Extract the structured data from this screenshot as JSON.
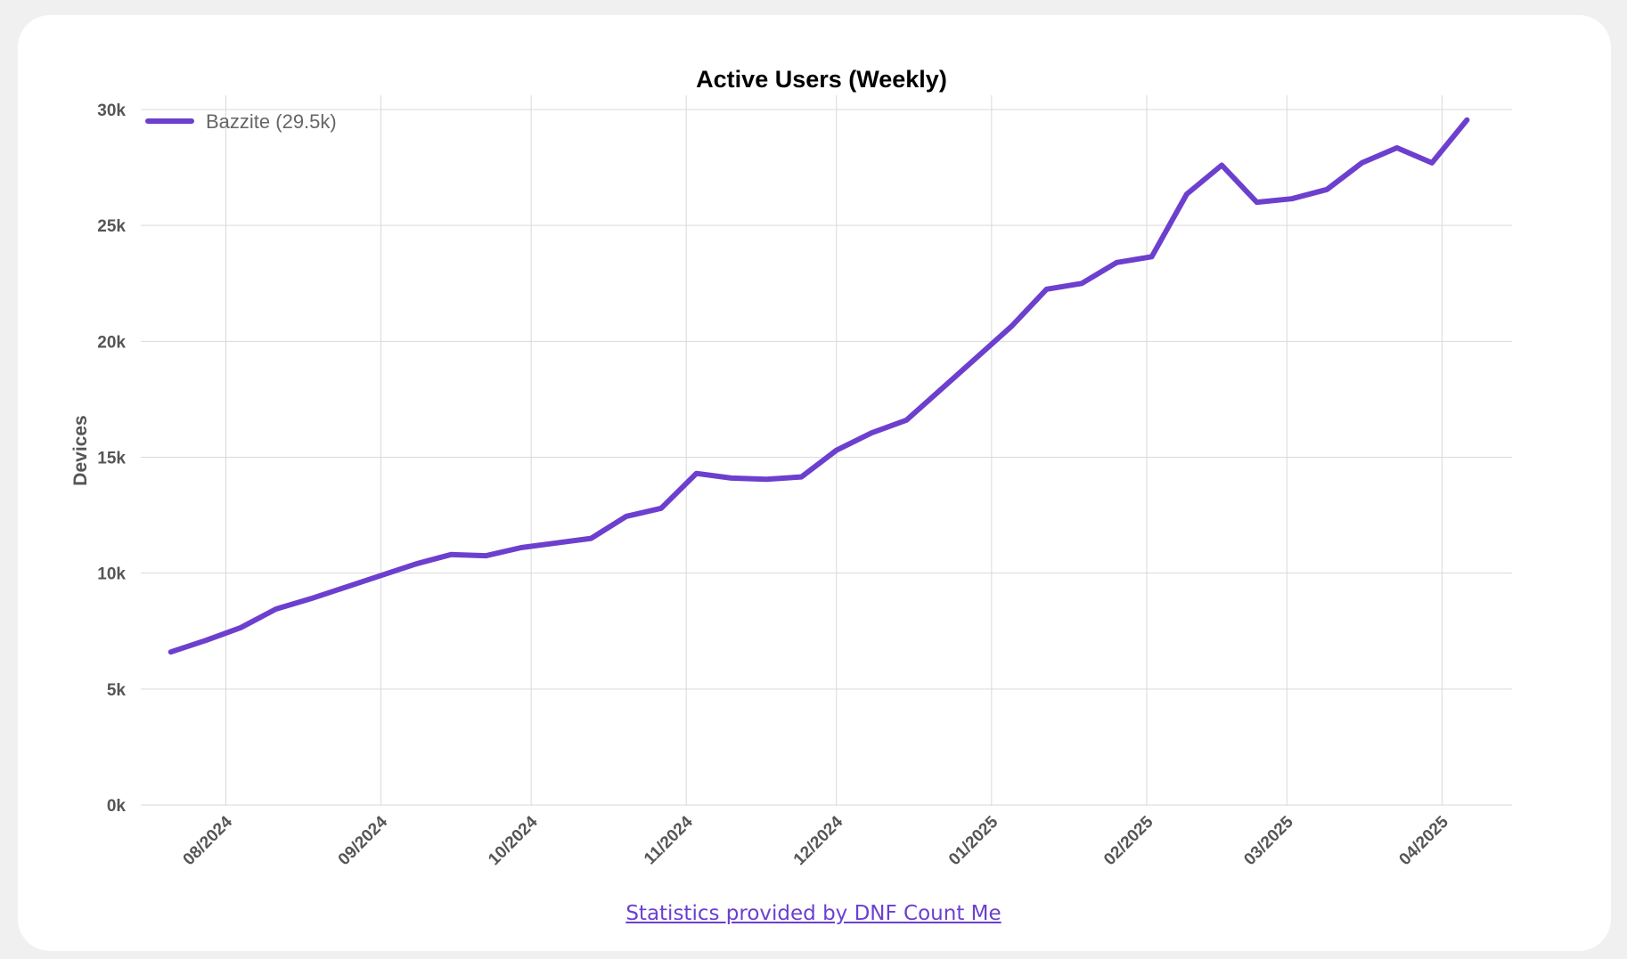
{
  "chart_data": {
    "type": "line",
    "title": "Active Users (Weekly)",
    "xlabel": "",
    "ylabel": "Devices",
    "ylim": [
      0,
      30000
    ],
    "y_ticks": [
      0,
      5000,
      10000,
      15000,
      20000,
      25000,
      30000
    ],
    "y_tick_labels": [
      "0k",
      "5k",
      "10k",
      "15k",
      "20k",
      "25k",
      "30k"
    ],
    "x_ticks": [
      "2024-08-01",
      "2024-09-01",
      "2024-10-01",
      "2024-11-01",
      "2024-12-01",
      "2025-01-01",
      "2025-02-01",
      "2025-03-01",
      "2025-04-01"
    ],
    "x_tick_labels": [
      "08/2024",
      "09/2024",
      "10/2024",
      "11/2024",
      "12/2024",
      "01/2025",
      "02/2025",
      "03/2025",
      "04/2025"
    ],
    "xlim": [
      "2024-07-15",
      "2025-04-15"
    ],
    "grid": true,
    "legend_position": "top-left",
    "series": [
      {
        "name": "Bazzite (29.5k)",
        "color": "#6d3fce",
        "x": [
          "2024-07-21",
          "2024-07-28",
          "2024-08-04",
          "2024-08-11",
          "2024-08-18",
          "2024-08-25",
          "2024-09-01",
          "2024-09-08",
          "2024-09-15",
          "2024-09-22",
          "2024-09-29",
          "2024-10-06",
          "2024-10-13",
          "2024-10-20",
          "2024-10-27",
          "2024-11-03",
          "2024-11-10",
          "2024-11-17",
          "2024-11-24",
          "2024-12-01",
          "2024-12-08",
          "2024-12-15",
          "2024-12-22",
          "2024-12-29",
          "2025-01-05",
          "2025-01-12",
          "2025-01-19",
          "2025-01-26",
          "2025-02-02",
          "2025-02-09",
          "2025-02-16",
          "2025-02-23",
          "2025-03-02",
          "2025-03-09",
          "2025-03-16",
          "2025-03-23",
          "2025-03-30",
          "2025-04-06"
        ],
        "values": [
          6600,
          7100,
          7650,
          8450,
          8900,
          9400,
          9900,
          10400,
          10800,
          10750,
          11100,
          11300,
          11500,
          12450,
          12800,
          14300,
          14100,
          14050,
          14150,
          15300,
          16050,
          16600,
          17950,
          19300,
          20650,
          22250,
          22500,
          23400,
          23650,
          26350,
          27600,
          26000,
          26150,
          26550,
          27700,
          28350,
          27700,
          29550
        ]
      }
    ]
  },
  "footer": {
    "link_text": "Statistics provided by DNF Count Me"
  }
}
